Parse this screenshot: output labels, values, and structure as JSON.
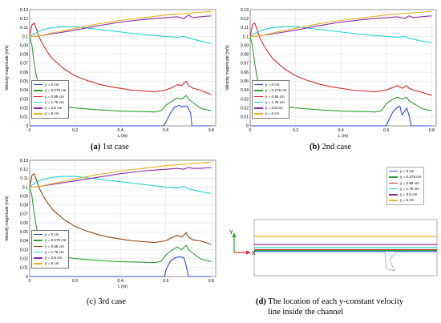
{
  "colors": {
    "y0": "#2d4fd9",
    "y0275": "#2ca02c",
    "y055": "#d62728",
    "y175": "#22d3d3",
    "y35": "#8a2aa8",
    "y6": "#e6b422",
    "case3_y055": "#8b4513"
  },
  "chart_data": [
    {
      "panel": "a",
      "type": "line",
      "caption_tag": "(a)",
      "caption_text": "1st case",
      "xlabel": "L (m)",
      "ylabel": "Velocity magnitude (m/s)",
      "xlim": [
        0,
        0.82
      ],
      "ylim": [
        0,
        0.13
      ],
      "xticks": [
        "0",
        "0.2",
        "0.4",
        "0.6",
        "0.8"
      ],
      "yticks": [
        "0",
        "0.01",
        "0.02",
        "0.03",
        "0.04",
        "0.05",
        "0.06",
        "0.07",
        "0.08",
        "0.09",
        "0.1",
        "0.11",
        "0.12",
        "0.13"
      ],
      "legend": [
        "y = 0 cm",
        "y = 0.275 cm",
        "y = 0.55 cm",
        "y = 1.75 cm",
        "y = 3.5 cm",
        "y = 6 cm"
      ],
      "series": [
        {
          "name": "y = 0 cm",
          "color_key": "y0",
          "x": [
            0,
            0.59,
            0.6,
            0.62,
            0.64,
            0.66,
            0.67,
            0.68,
            0.695,
            0.71,
            0.715,
            0.8
          ],
          "y": [
            0,
            0,
            0.004,
            0.014,
            0.021,
            0.023,
            0.021,
            0.022,
            0.022,
            0.014,
            0,
            0
          ]
        },
        {
          "name": "y = 0.275 cm",
          "color_key": "y0275",
          "x": [
            0,
            0.01,
            0.02,
            0.03,
            0.04,
            0.05,
            0.07,
            0.1,
            0.15,
            0.2,
            0.3,
            0.4,
            0.5,
            0.55,
            0.58,
            0.6,
            0.63,
            0.65,
            0.67,
            0.69,
            0.7,
            0.72,
            0.74,
            0.76,
            0.8
          ],
          "y": [
            0.1,
            0.09,
            0.07,
            0.055,
            0.045,
            0.038,
            0.031,
            0.026,
            0.022,
            0.02,
            0.018,
            0.0165,
            0.016,
            0.0155,
            0.017,
            0.023,
            0.028,
            0.031,
            0.03,
            0.034,
            0.03,
            0.026,
            0.022,
            0.019,
            0.017
          ]
        },
        {
          "name": "y = 0.55 cm",
          "color_key": "y055",
          "x": [
            0,
            0.01,
            0.02,
            0.03,
            0.04,
            0.06,
            0.08,
            0.1,
            0.15,
            0.2,
            0.25,
            0.3,
            0.35,
            0.4,
            0.45,
            0.5,
            0.55,
            0.6,
            0.63,
            0.65,
            0.67,
            0.69,
            0.7,
            0.72,
            0.75,
            0.8
          ],
          "y": [
            0.1,
            0.113,
            0.115,
            0.108,
            0.1,
            0.09,
            0.082,
            0.075,
            0.064,
            0.056,
            0.051,
            0.047,
            0.044,
            0.042,
            0.04,
            0.039,
            0.038,
            0.04,
            0.043,
            0.046,
            0.045,
            0.05,
            0.045,
            0.042,
            0.04,
            0.035
          ]
        },
        {
          "name": "y = 1.75 cm",
          "color_key": "y175",
          "x": [
            0,
            0.02,
            0.05,
            0.1,
            0.15,
            0.2,
            0.3,
            0.4,
            0.5,
            0.6,
            0.65,
            0.68,
            0.7,
            0.72,
            0.75,
            0.8
          ],
          "y": [
            0.1,
            0.103,
            0.107,
            0.11,
            0.111,
            0.111,
            0.108,
            0.105,
            0.102,
            0.1,
            0.099,
            0.1,
            0.098,
            0.097,
            0.095,
            0.092
          ]
        },
        {
          "name": "y = 3.5 cm",
          "color_key": "y35",
          "x": [
            0,
            0.02,
            0.05,
            0.1,
            0.2,
            0.3,
            0.4,
            0.5,
            0.6,
            0.65,
            0.68,
            0.7,
            0.72,
            0.75,
            0.8
          ],
          "y": [
            0.1,
            0.1,
            0.101,
            0.103,
            0.107,
            0.112,
            0.116,
            0.119,
            0.121,
            0.122,
            0.12,
            0.124,
            0.121,
            0.122,
            0.123
          ]
        },
        {
          "name": "y = 6 cm",
          "color_key": "y6",
          "x": [
            0,
            0.02,
            0.05,
            0.1,
            0.2,
            0.3,
            0.4,
            0.5,
            0.6,
            0.65,
            0.7,
            0.75,
            0.8
          ],
          "y": [
            0.1,
            0.1,
            0.101,
            0.104,
            0.109,
            0.114,
            0.118,
            0.121,
            0.124,
            0.125,
            0.126,
            0.127,
            0.128
          ]
        }
      ]
    },
    {
      "panel": "b",
      "type": "line",
      "caption_tag": "(b)",
      "caption_text": "2nd case",
      "xlabel": "L (m)",
      "ylabel": "Velocity magnitude (m/s)",
      "xlim": [
        0,
        0.82
      ],
      "ylim": [
        0,
        0.13
      ],
      "xticks": [
        "0",
        "0.2",
        "0.4",
        "0.6",
        "0.8"
      ],
      "yticks": [
        "0",
        "0.01",
        "0.02",
        "0.03",
        "0.04",
        "0.05",
        "0.06",
        "0.07",
        "0.08",
        "0.09",
        "0.1",
        "0.11",
        "0.12",
        "0.13"
      ],
      "legend": [
        "y = 0 cm",
        "y = 0.275 cm",
        "y = 0.55 cm",
        "y = 1.75 cm",
        "y = 3.5 cm",
        "y = 6 cm"
      ],
      "series": [
        {
          "name": "y = 0 cm",
          "color_key": "y0",
          "x": [
            0,
            0.6,
            0.61,
            0.63,
            0.65,
            0.66,
            0.67,
            0.69,
            0.7,
            0.71,
            0.8
          ],
          "y": [
            0,
            0,
            0.006,
            0.016,
            0.021,
            0.022,
            0.012,
            0.02,
            0.012,
            0,
            0
          ]
        },
        {
          "name": "y = 0.275 cm",
          "color_key": "y0275",
          "x": [
            0,
            0.01,
            0.02,
            0.03,
            0.04,
            0.05,
            0.07,
            0.1,
            0.15,
            0.2,
            0.3,
            0.4,
            0.5,
            0.55,
            0.58,
            0.6,
            0.63,
            0.65,
            0.67,
            0.69,
            0.7,
            0.72,
            0.74,
            0.76,
            0.8
          ],
          "y": [
            0.1,
            0.09,
            0.07,
            0.055,
            0.045,
            0.038,
            0.031,
            0.026,
            0.022,
            0.02,
            0.018,
            0.0165,
            0.016,
            0.0155,
            0.017,
            0.025,
            0.03,
            0.032,
            0.03,
            0.032,
            0.028,
            0.025,
            0.022,
            0.019,
            0.017
          ]
        },
        {
          "name": "y = 0.55 cm",
          "color_key": "y055",
          "x": [
            0,
            0.01,
            0.02,
            0.03,
            0.04,
            0.06,
            0.08,
            0.1,
            0.15,
            0.2,
            0.25,
            0.3,
            0.35,
            0.4,
            0.45,
            0.5,
            0.55,
            0.6,
            0.63,
            0.65,
            0.67,
            0.69,
            0.7,
            0.72,
            0.75,
            0.8
          ],
          "y": [
            0.1,
            0.113,
            0.115,
            0.108,
            0.1,
            0.09,
            0.082,
            0.075,
            0.064,
            0.056,
            0.051,
            0.047,
            0.044,
            0.042,
            0.04,
            0.039,
            0.038,
            0.04,
            0.043,
            0.045,
            0.042,
            0.045,
            0.042,
            0.04,
            0.038,
            0.034
          ]
        },
        {
          "name": "y = 1.75 cm",
          "color_key": "y175",
          "x": [
            0,
            0.02,
            0.05,
            0.1,
            0.15,
            0.2,
            0.3,
            0.4,
            0.5,
            0.6,
            0.65,
            0.68,
            0.7,
            0.72,
            0.75,
            0.8
          ],
          "y": [
            0.1,
            0.103,
            0.107,
            0.11,
            0.111,
            0.111,
            0.108,
            0.105,
            0.102,
            0.1,
            0.099,
            0.1,
            0.098,
            0.097,
            0.095,
            0.093
          ]
        },
        {
          "name": "y = 3.5 cm",
          "color_key": "y35",
          "x": [
            0,
            0.02,
            0.05,
            0.1,
            0.2,
            0.3,
            0.4,
            0.5,
            0.6,
            0.65,
            0.68,
            0.7,
            0.72,
            0.75,
            0.8
          ],
          "y": [
            0.1,
            0.1,
            0.101,
            0.103,
            0.107,
            0.112,
            0.116,
            0.119,
            0.121,
            0.122,
            0.12,
            0.123,
            0.121,
            0.122,
            0.123
          ]
        },
        {
          "name": "y = 6 cm",
          "color_key": "y6",
          "x": [
            0,
            0.02,
            0.05,
            0.1,
            0.2,
            0.3,
            0.4,
            0.5,
            0.6,
            0.65,
            0.7,
            0.75,
            0.8
          ],
          "y": [
            0.1,
            0.1,
            0.101,
            0.104,
            0.109,
            0.114,
            0.118,
            0.121,
            0.124,
            0.125,
            0.126,
            0.127,
            0.128
          ]
        }
      ]
    },
    {
      "panel": "c",
      "type": "line",
      "caption_tag": "(c)",
      "caption_text": "3rd case",
      "xlabel": "L (m)",
      "ylabel": "Velocity magnitude (m/s)",
      "xlim": [
        0,
        0.82
      ],
      "ylim": [
        0,
        0.13
      ],
      "xticks": [
        "0",
        "0.2",
        "0.4",
        "0.6",
        "0.8"
      ],
      "yticks": [
        "0",
        "0.01",
        "0.02",
        "0.03",
        "0.04",
        "0.05",
        "0.06",
        "0.07",
        "0.08",
        "0.09",
        "0.1",
        "0.11",
        "0.12",
        "0.13"
      ],
      "legend": [
        "y = 0 cm",
        "y = 0.275 cm",
        "y = 0.55 cm",
        "y = 1.75 cm",
        "y = 3.5 cm",
        "y = 6 cm"
      ],
      "series": [
        {
          "name": "y = 0 cm",
          "color_key": "y0",
          "x": [
            0,
            0.595,
            0.6,
            0.62,
            0.64,
            0.66,
            0.68,
            0.69,
            0.7,
            0.8
          ],
          "y": [
            0,
            0,
            0.007,
            0.017,
            0.021,
            0.022,
            0.021,
            0.012,
            0,
            0
          ]
        },
        {
          "name": "y = 0.275 cm",
          "color_key": "y0275",
          "x": [
            0,
            0.01,
            0.02,
            0.03,
            0.04,
            0.05,
            0.07,
            0.1,
            0.15,
            0.2,
            0.3,
            0.4,
            0.5,
            0.55,
            0.58,
            0.6,
            0.63,
            0.65,
            0.67,
            0.69,
            0.7,
            0.72,
            0.74,
            0.76,
            0.8
          ],
          "y": [
            0.1,
            0.09,
            0.07,
            0.055,
            0.045,
            0.038,
            0.031,
            0.026,
            0.022,
            0.02,
            0.018,
            0.0165,
            0.016,
            0.0155,
            0.017,
            0.024,
            0.03,
            0.033,
            0.03,
            0.035,
            0.03,
            0.026,
            0.022,
            0.019,
            0.017
          ]
        },
        {
          "name": "y = 0.55 cm",
          "color_key": "case3_y055",
          "x": [
            0,
            0.01,
            0.02,
            0.03,
            0.04,
            0.06,
            0.08,
            0.1,
            0.15,
            0.2,
            0.25,
            0.3,
            0.35,
            0.4,
            0.45,
            0.5,
            0.55,
            0.6,
            0.63,
            0.65,
            0.67,
            0.69,
            0.7,
            0.72,
            0.75,
            0.8
          ],
          "y": [
            0.1,
            0.113,
            0.115,
            0.108,
            0.1,
            0.09,
            0.082,
            0.075,
            0.064,
            0.056,
            0.051,
            0.047,
            0.044,
            0.042,
            0.04,
            0.039,
            0.038,
            0.04,
            0.044,
            0.046,
            0.044,
            0.049,
            0.044,
            0.041,
            0.04,
            0.036
          ]
        },
        {
          "name": "y = 1.75 cm",
          "color_key": "y175",
          "x": [
            0,
            0.02,
            0.05,
            0.1,
            0.15,
            0.2,
            0.3,
            0.4,
            0.5,
            0.6,
            0.65,
            0.68,
            0.7,
            0.72,
            0.75,
            0.8
          ],
          "y": [
            0.1,
            0.104,
            0.108,
            0.111,
            0.112,
            0.112,
            0.109,
            0.106,
            0.103,
            0.1,
            0.099,
            0.101,
            0.098,
            0.097,
            0.095,
            0.093
          ]
        },
        {
          "name": "y = 3.5 cm",
          "color_key": "y35",
          "x": [
            0,
            0.02,
            0.05,
            0.1,
            0.2,
            0.3,
            0.4,
            0.5,
            0.6,
            0.65,
            0.68,
            0.7,
            0.72,
            0.75,
            0.8
          ],
          "y": [
            0.1,
            0.1,
            0.101,
            0.103,
            0.107,
            0.111,
            0.115,
            0.118,
            0.12,
            0.121,
            0.12,
            0.122,
            0.121,
            0.121,
            0.122
          ]
        },
        {
          "name": "y = 6 cm",
          "color_key": "y6",
          "x": [
            0,
            0.02,
            0.05,
            0.1,
            0.2,
            0.3,
            0.4,
            0.5,
            0.6,
            0.65,
            0.7,
            0.75,
            0.8
          ],
          "y": [
            0.1,
            0.1,
            0.101,
            0.104,
            0.109,
            0.114,
            0.118,
            0.121,
            0.124,
            0.125,
            0.126,
            0.127,
            0.128
          ]
        }
      ]
    }
  ],
  "panel_d": {
    "caption_tag": "(d)",
    "caption_line1": "The location of each y-constant velocity",
    "caption_line2": "line inside the channel",
    "legend": [
      "y = 0 cm",
      "y = 0.275 cm",
      "y = 0.55 cm",
      "y = 1.75 cm",
      "y = 3.5 cm",
      "y = 6 cm"
    ],
    "axis_y": "Y",
    "axis_x": "X"
  }
}
